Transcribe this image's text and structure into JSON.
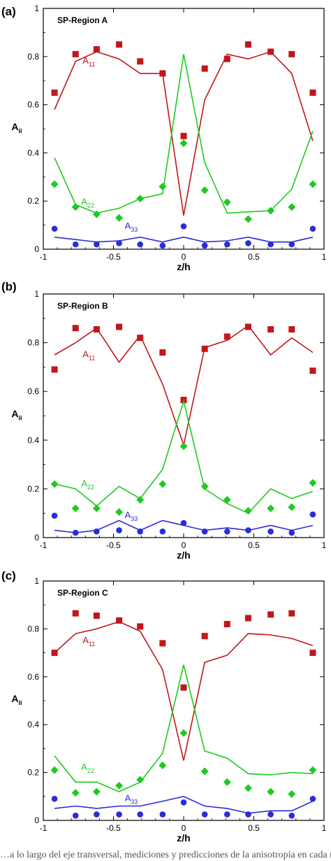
{
  "caption": "…a lo largo del eje transversal, mediciones y predicciones de la anisotropía en cada región…",
  "chart_data": [
    {
      "type": "scatter",
      "panel_label": "(a)",
      "title": "SP-Region A",
      "xlabel": "z/h",
      "ylabel": "A",
      "ylabel_sub": "ii",
      "xlim": [
        -1,
        1
      ],
      "ylim": [
        0,
        1
      ],
      "xticks": [
        "-1",
        "-0.5",
        "0",
        "0.5",
        "1"
      ],
      "yticks": [
        "0",
        "0.2",
        "0.4",
        "0.6",
        "0.8",
        "1"
      ],
      "series": [
        {
          "name": "A11",
          "label_main": "A",
          "label_sub": "11",
          "color": "#c0161b",
          "marker": "square",
          "label_pos": [
            -0.72,
            0.77
          ],
          "points_x": [
            -0.92,
            -0.77,
            -0.62,
            -0.46,
            -0.31,
            -0.15,
            0,
            0.15,
            0.31,
            0.46,
            0.62,
            0.77,
            0.92
          ],
          "points_y": [
            0.65,
            0.81,
            0.83,
            0.85,
            0.78,
            0.73,
            0.47,
            0.75,
            0.79,
            0.85,
            0.82,
            0.81,
            0.65
          ],
          "line_x": [
            -0.92,
            -0.77,
            -0.62,
            -0.46,
            -0.31,
            -0.15,
            0,
            0.15,
            0.31,
            0.46,
            0.62,
            0.77,
            0.92
          ],
          "line_y": [
            0.58,
            0.78,
            0.82,
            0.79,
            0.73,
            0.73,
            0.14,
            0.62,
            0.81,
            0.79,
            0.82,
            0.73,
            0.45
          ]
        },
        {
          "name": "A22",
          "label_main": "A",
          "label_sub": "22",
          "color": "#1fca1f",
          "marker": "diamond",
          "label_pos": [
            -0.73,
            0.185
          ],
          "points_x": [
            -0.92,
            -0.77,
            -0.62,
            -0.46,
            -0.31,
            -0.15,
            0,
            0.15,
            0.31,
            0.46,
            0.62,
            0.77,
            0.92
          ],
          "points_y": [
            0.27,
            0.175,
            0.145,
            0.13,
            0.21,
            0.26,
            0.44,
            0.245,
            0.195,
            0.125,
            0.16,
            0.175,
            0.27
          ],
          "line_x": [
            -0.92,
            -0.77,
            -0.62,
            -0.46,
            -0.31,
            -0.15,
            0,
            0.15,
            0.31,
            0.46,
            0.62,
            0.77,
            0.92
          ],
          "line_y": [
            0.38,
            0.185,
            0.15,
            0.17,
            0.21,
            0.23,
            0.81,
            0.36,
            0.15,
            0.155,
            0.16,
            0.25,
            0.49
          ]
        },
        {
          "name": "A33",
          "label_main": "A",
          "label_sub": "33",
          "color": "#2b2bdc",
          "marker": "circle",
          "label_pos": [
            -0.42,
            0.085
          ],
          "points_x": [
            -0.92,
            -0.77,
            -0.62,
            -0.46,
            -0.31,
            -0.15,
            0,
            0.15,
            0.31,
            0.46,
            0.62,
            0.77,
            0.92
          ],
          "points_y": [
            0.085,
            0.02,
            0.02,
            0.025,
            0.02,
            0.015,
            0.095,
            0.015,
            0.02,
            0.025,
            0.02,
            0.02,
            0.085
          ],
          "line_x": [
            -0.92,
            -0.77,
            -0.62,
            -0.46,
            -0.31,
            -0.15,
            0,
            0.15,
            0.31,
            0.46,
            0.62,
            0.77,
            0.92
          ],
          "line_y": [
            0.05,
            0.04,
            0.03,
            0.035,
            0.05,
            0.03,
            0.05,
            0.03,
            0.035,
            0.05,
            0.03,
            0.03,
            0.05
          ]
        }
      ]
    },
    {
      "type": "scatter",
      "panel_label": "(b)",
      "title": "SP-Region B",
      "xlabel": "z/h",
      "ylabel": "A",
      "ylabel_sub": "ii",
      "xlim": [
        -1,
        1
      ],
      "ylim": [
        0,
        1
      ],
      "xticks": [
        "-1",
        "-0.5",
        "0",
        "0.5",
        "1"
      ],
      "yticks": [
        "0",
        "0.2",
        "0.4",
        "0.6",
        "0.8",
        "1"
      ],
      "series": [
        {
          "name": "A11",
          "label_main": "A",
          "label_sub": "11",
          "color": "#c0161b",
          "marker": "square",
          "label_pos": [
            -0.72,
            0.74
          ],
          "points_x": [
            -0.92,
            -0.77,
            -0.62,
            -0.46,
            -0.31,
            -0.15,
            0,
            0.15,
            0.31,
            0.46,
            0.62,
            0.77,
            0.92
          ],
          "points_y": [
            0.69,
            0.86,
            0.855,
            0.865,
            0.82,
            0.76,
            0.565,
            0.775,
            0.825,
            0.865,
            0.855,
            0.855,
            0.685
          ],
          "line_x": [
            -0.92,
            -0.77,
            -0.62,
            -0.46,
            -0.31,
            -0.15,
            0,
            0.15,
            0.31,
            0.46,
            0.62,
            0.77,
            0.92
          ],
          "line_y": [
            0.75,
            0.8,
            0.86,
            0.72,
            0.83,
            0.63,
            0.38,
            0.78,
            0.81,
            0.87,
            0.75,
            0.82,
            0.76
          ]
        },
        {
          "name": "A22",
          "label_main": "A",
          "label_sub": "22",
          "color": "#1fca1f",
          "marker": "diamond",
          "label_pos": [
            -0.73,
            0.21
          ],
          "points_x": [
            -0.92,
            -0.77,
            -0.62,
            -0.46,
            -0.31,
            -0.15,
            0,
            0.15,
            0.31,
            0.46,
            0.62,
            0.77,
            0.92
          ],
          "points_y": [
            0.22,
            0.12,
            0.12,
            0.105,
            0.155,
            0.22,
            0.375,
            0.21,
            0.155,
            0.11,
            0.12,
            0.125,
            0.225
          ],
          "line_x": [
            -0.92,
            -0.77,
            -0.62,
            -0.46,
            -0.31,
            -0.15,
            0,
            0.15,
            0.31,
            0.46,
            0.62,
            0.77,
            0.92
          ],
          "line_y": [
            0.22,
            0.2,
            0.13,
            0.21,
            0.16,
            0.28,
            0.56,
            0.2,
            0.14,
            0.1,
            0.2,
            0.16,
            0.19
          ]
        },
        {
          "name": "A33",
          "label_main": "A",
          "label_sub": "33",
          "color": "#2b2bdc",
          "marker": "circle",
          "label_pos": [
            -0.42,
            0.08
          ],
          "points_x": [
            -0.92,
            -0.77,
            -0.62,
            -0.46,
            -0.31,
            -0.15,
            0,
            0.15,
            0.31,
            0.46,
            0.62,
            0.77,
            0.92
          ],
          "points_y": [
            0.09,
            0.02,
            0.025,
            0.03,
            0.025,
            0.025,
            0.06,
            0.025,
            0.025,
            0.03,
            0.025,
            0.02,
            0.095
          ],
          "line_x": [
            -0.92,
            -0.77,
            -0.62,
            -0.46,
            -0.31,
            -0.15,
            0,
            0.15,
            0.31,
            0.46,
            0.62,
            0.77,
            0.92
          ],
          "line_y": [
            0.03,
            0.02,
            0.03,
            0.07,
            0.03,
            0.07,
            0.05,
            0.03,
            0.04,
            0.03,
            0.05,
            0.03,
            0.05
          ]
        }
      ]
    },
    {
      "type": "scatter",
      "panel_label": "(c)",
      "title": "SP-Region C",
      "xlabel": "z/h",
      "ylabel": "A",
      "ylabel_sub": "ii",
      "xlim": [
        -1,
        1
      ],
      "ylim": [
        0,
        1
      ],
      "xticks": [
        "-1",
        "-0.5",
        "0",
        "0.5",
        "1"
      ],
      "yticks": [
        "0",
        "0.2",
        "0.4",
        "0.6",
        "0.8",
        "1"
      ],
      "series": [
        {
          "name": "A11",
          "label_main": "A",
          "label_sub": "11",
          "color": "#c0161b",
          "marker": "square",
          "label_pos": [
            -0.72,
            0.74
          ],
          "points_x": [
            -0.92,
            -0.77,
            -0.62,
            -0.46,
            -0.31,
            -0.15,
            0,
            0.15,
            0.31,
            0.46,
            0.62,
            0.77,
            0.92
          ],
          "points_y": [
            0.7,
            0.865,
            0.855,
            0.835,
            0.81,
            0.74,
            0.555,
            0.77,
            0.82,
            0.845,
            0.86,
            0.865,
            0.7
          ],
          "line_x": [
            -0.92,
            -0.77,
            -0.62,
            -0.46,
            -0.31,
            -0.15,
            0,
            0.15,
            0.31,
            0.46,
            0.62,
            0.77,
            0.92
          ],
          "line_y": [
            0.7,
            0.78,
            0.8,
            0.83,
            0.79,
            0.63,
            0.25,
            0.66,
            0.69,
            0.78,
            0.775,
            0.76,
            0.73
          ]
        },
        {
          "name": "A22",
          "label_main": "A",
          "label_sub": "22",
          "color": "#1fca1f",
          "marker": "diamond",
          "label_pos": [
            -0.73,
            0.21
          ],
          "points_x": [
            -0.92,
            -0.77,
            -0.62,
            -0.46,
            -0.31,
            -0.15,
            0,
            0.15,
            0.31,
            0.46,
            0.62,
            0.77,
            0.92
          ],
          "points_y": [
            0.21,
            0.115,
            0.12,
            0.145,
            0.17,
            0.23,
            0.365,
            0.205,
            0.16,
            0.135,
            0.12,
            0.11,
            0.21
          ],
          "line_x": [
            -0.92,
            -0.77,
            -0.62,
            -0.46,
            -0.31,
            -0.15,
            0,
            0.15,
            0.31,
            0.46,
            0.62,
            0.77,
            0.92
          ],
          "line_y": [
            0.27,
            0.16,
            0.16,
            0.12,
            0.16,
            0.28,
            0.65,
            0.29,
            0.26,
            0.195,
            0.19,
            0.2,
            0.195
          ]
        },
        {
          "name": "A33",
          "label_main": "A",
          "label_sub": "33",
          "color": "#2b2bdc",
          "marker": "circle",
          "label_pos": [
            -0.42,
            0.08
          ],
          "points_x": [
            -0.92,
            -0.77,
            -0.62,
            -0.46,
            -0.31,
            -0.15,
            0,
            0.15,
            0.31,
            0.46,
            0.62,
            0.77,
            0.92
          ],
          "points_y": [
            0.09,
            0.02,
            0.025,
            0.025,
            0.025,
            0.025,
            0.075,
            0.025,
            0.025,
            0.025,
            0.025,
            0.02,
            0.09
          ],
          "line_x": [
            -0.92,
            -0.77,
            -0.62,
            -0.46,
            -0.31,
            -0.15,
            0,
            0.15,
            0.31,
            0.46,
            0.62,
            0.77,
            0.92
          ],
          "line_y": [
            0.05,
            0.06,
            0.05,
            0.06,
            0.06,
            0.08,
            0.1,
            0.06,
            0.05,
            0.03,
            0.04,
            0.04,
            0.08
          ]
        }
      ]
    }
  ]
}
